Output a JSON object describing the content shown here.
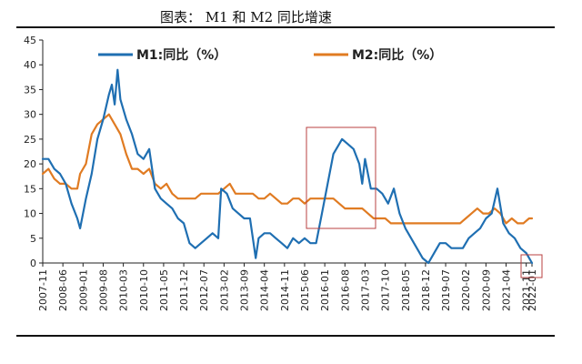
{
  "chart_data": {
    "type": "line",
    "title": "图表： M1 和 M2 同比增速",
    "xlabel": "",
    "ylabel": "",
    "ylim": [
      0,
      45
    ],
    "yticks": [
      0,
      5,
      10,
      15,
      20,
      25,
      30,
      35,
      40,
      45
    ],
    "xtick_labels": [
      "2007-11",
      "2008-06",
      "2009-01",
      "2009-08",
      "2010-03",
      "2010-10",
      "2011-05",
      "2011-12",
      "2012-07",
      "2013-02",
      "2013-09",
      "2014-04",
      "2014-11",
      "2015-06",
      "2016-01",
      "2016-08",
      "2017-03",
      "2017-10",
      "2018-05",
      "2018-12",
      "2019-07",
      "2020-02",
      "2020-09",
      "2021-04",
      "2021-11",
      "2022-01"
    ],
    "legend_position": "top",
    "grid": false,
    "colors": {
      "M1": "#1f6fb2",
      "M2": "#e07b22",
      "highlight": "#b84040"
    },
    "series": [
      {
        "name": "M1:同比（%）",
        "x": [
          "2007-11",
          "2008-01",
          "2008-03",
          "2008-05",
          "2008-07",
          "2008-09",
          "2008-11",
          "2008-12",
          "2009-02",
          "2009-04",
          "2009-06",
          "2009-08",
          "2009-10",
          "2009-11",
          "2009-12",
          "2010-01",
          "2010-02",
          "2010-04",
          "2010-06",
          "2010-08",
          "2010-10",
          "2010-12",
          "2011-02",
          "2011-04",
          "2011-06",
          "2011-08",
          "2011-10",
          "2011-12",
          "2012-02",
          "2012-04",
          "2012-06",
          "2012-08",
          "2012-10",
          "2012-12",
          "2013-01",
          "2013-03",
          "2013-05",
          "2013-07",
          "2013-09",
          "2013-11",
          "2014-01",
          "2014-02",
          "2014-04",
          "2014-06",
          "2014-08",
          "2014-10",
          "2014-12",
          "2015-02",
          "2015-04",
          "2015-06",
          "2015-08",
          "2015-10",
          "2015-12",
          "2016-02",
          "2016-04",
          "2016-06",
          "2016-07",
          "2016-09",
          "2016-11",
          "2017-01",
          "2017-02",
          "2017-03",
          "2017-05",
          "2017-07",
          "2017-09",
          "2017-11",
          "2018-01",
          "2018-03",
          "2018-05",
          "2018-07",
          "2018-09",
          "2018-11",
          "2019-01",
          "2019-03",
          "2019-05",
          "2019-07",
          "2019-09",
          "2019-11",
          "2020-01",
          "2020-03",
          "2020-05",
          "2020-07",
          "2020-09",
          "2020-11",
          "2021-01",
          "2021-03",
          "2021-05",
          "2021-07",
          "2021-09",
          "2021-11",
          "2022-01"
        ],
        "values": [
          21,
          21,
          19,
          18,
          16,
          12,
          9,
          7,
          13,
          18,
          25,
          29,
          34,
          36,
          32,
          39,
          33,
          29,
          26,
          22,
          21,
          23,
          15,
          13,
          12,
          11,
          9,
          8,
          4,
          3,
          4,
          5,
          6,
          5,
          15,
          14,
          11,
          10,
          9,
          9,
          1,
          5,
          6,
          6,
          5,
          4,
          3,
          5,
          4,
          5,
          4,
          4,
          10,
          16,
          22,
          24,
          25,
          24,
          23,
          20,
          16,
          21,
          15,
          15,
          14,
          12,
          15,
          10,
          7,
          5,
          3,
          1,
          0,
          2,
          4,
          4,
          3,
          3,
          3,
          5,
          6,
          7,
          9,
          10,
          15,
          8,
          6,
          5,
          3,
          2,
          0
        ]
      },
      {
        "name": "M2:同比（%）",
        "x": [
          "2007-11",
          "2008-01",
          "2008-03",
          "2008-05",
          "2008-07",
          "2008-09",
          "2008-11",
          "2008-12",
          "2009-02",
          "2009-04",
          "2009-06",
          "2009-08",
          "2009-10",
          "2009-12",
          "2010-02",
          "2010-04",
          "2010-06",
          "2010-08",
          "2010-10",
          "2010-12",
          "2011-02",
          "2011-04",
          "2011-06",
          "2011-08",
          "2011-10",
          "2011-12",
          "2012-02",
          "2012-04",
          "2012-06",
          "2012-08",
          "2012-10",
          "2012-12",
          "2013-02",
          "2013-04",
          "2013-06",
          "2013-08",
          "2013-10",
          "2013-12",
          "2014-02",
          "2014-04",
          "2014-06",
          "2014-08",
          "2014-10",
          "2014-12",
          "2015-02",
          "2015-04",
          "2015-06",
          "2015-08",
          "2015-10",
          "2015-12",
          "2016-02",
          "2016-04",
          "2016-06",
          "2016-08",
          "2016-10",
          "2016-12",
          "2017-02",
          "2017-04",
          "2017-06",
          "2017-08",
          "2017-10",
          "2017-12",
          "2018-02",
          "2018-04",
          "2018-06",
          "2018-08",
          "2018-10",
          "2018-12",
          "2019-02",
          "2019-04",
          "2019-06",
          "2019-08",
          "2019-10",
          "2019-12",
          "2020-02",
          "2020-04",
          "2020-06",
          "2020-08",
          "2020-10",
          "2020-12",
          "2021-02",
          "2021-04",
          "2021-06",
          "2021-08",
          "2021-10",
          "2021-12",
          "2022-01"
        ],
        "values": [
          18,
          19,
          17,
          16,
          16,
          15,
          15,
          18,
          20,
          26,
          28,
          29,
          30,
          28,
          26,
          22,
          19,
          19,
          18,
          19,
          16,
          15,
          16,
          14,
          13,
          13,
          13,
          13,
          14,
          14,
          14,
          14,
          15,
          16,
          14,
          14,
          14,
          14,
          13,
          13,
          14,
          13,
          12,
          12,
          13,
          13,
          12,
          13,
          13,
          13,
          13,
          13,
          12,
          11,
          11,
          11,
          11,
          10,
          9,
          9,
          9,
          8,
          8,
          8,
          8,
          8,
          8,
          8,
          8,
          8,
          8,
          8,
          8,
          8,
          9,
          10,
          11,
          10,
          10,
          11,
          10,
          8,
          9,
          8,
          8,
          9,
          9
        ]
      }
    ]
  }
}
